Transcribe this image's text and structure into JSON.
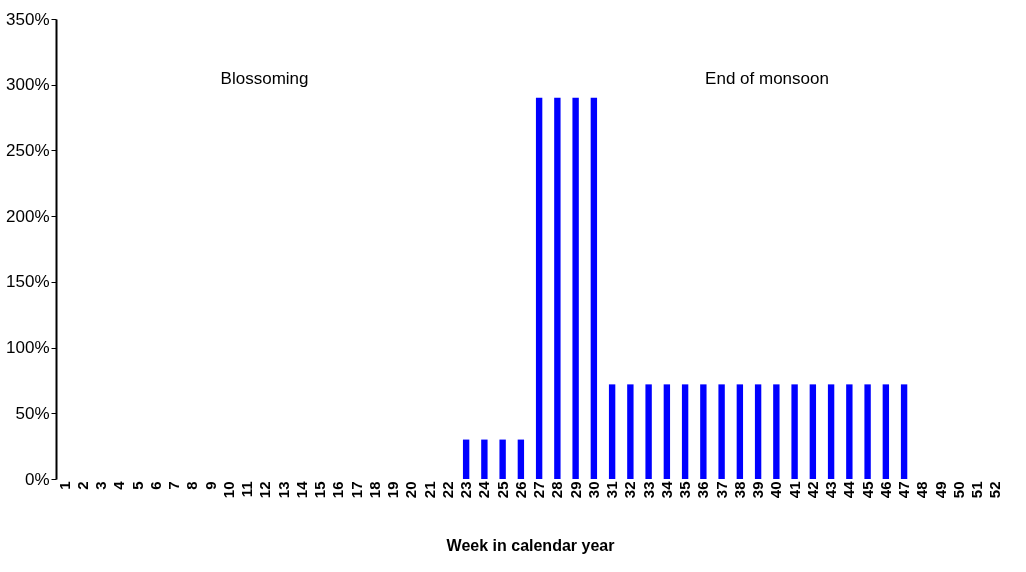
{
  "chart_data": {
    "type": "bar",
    "xlabel": "Week in calendar year",
    "categories": [
      "1",
      "2",
      "3",
      "4",
      "5",
      "6",
      "7",
      "8",
      "9",
      "10",
      "11",
      "12",
      "13",
      "14",
      "15",
      "16",
      "17",
      "18",
      "19",
      "20",
      "21",
      "22",
      "23",
      "24",
      "25",
      "26",
      "27",
      "28",
      "29",
      "30",
      "31",
      "32",
      "33",
      "34",
      "35",
      "36",
      "37",
      "38",
      "39",
      "40",
      "41",
      "42",
      "43",
      "44",
      "45",
      "46",
      "47",
      "48",
      "49",
      "50",
      "51",
      "52"
    ],
    "values": [
      null,
      null,
      null,
      null,
      null,
      null,
      null,
      null,
      null,
      null,
      null,
      null,
      null,
      null,
      null,
      null,
      null,
      null,
      null,
      null,
      null,
      null,
      30,
      30,
      30,
      30,
      290,
      290,
      290,
      290,
      72,
      72,
      72,
      72,
      72,
      72,
      72,
      72,
      72,
      72,
      72,
      72,
      72,
      72,
      72,
      72,
      72,
      null,
      null,
      null,
      null,
      null
    ],
    "color": "#0000ff",
    "ylim": [
      0,
      350
    ],
    "yticks": [
      {
        "value": 0,
        "label": "0%"
      },
      {
        "value": 50,
        "label": "50%"
      },
      {
        "value": 100,
        "label": "100%"
      },
      {
        "value": 150,
        "label": "150%"
      },
      {
        "value": 200,
        "label": "200%"
      },
      {
        "value": 250,
        "label": "250%"
      },
      {
        "value": 300,
        "label": "300%"
      },
      {
        "value": 350,
        "label": "350%"
      }
    ],
    "annotations": [
      "Blossoming",
      "End of monsoon"
    ],
    "grid": false,
    "legend": false
  }
}
